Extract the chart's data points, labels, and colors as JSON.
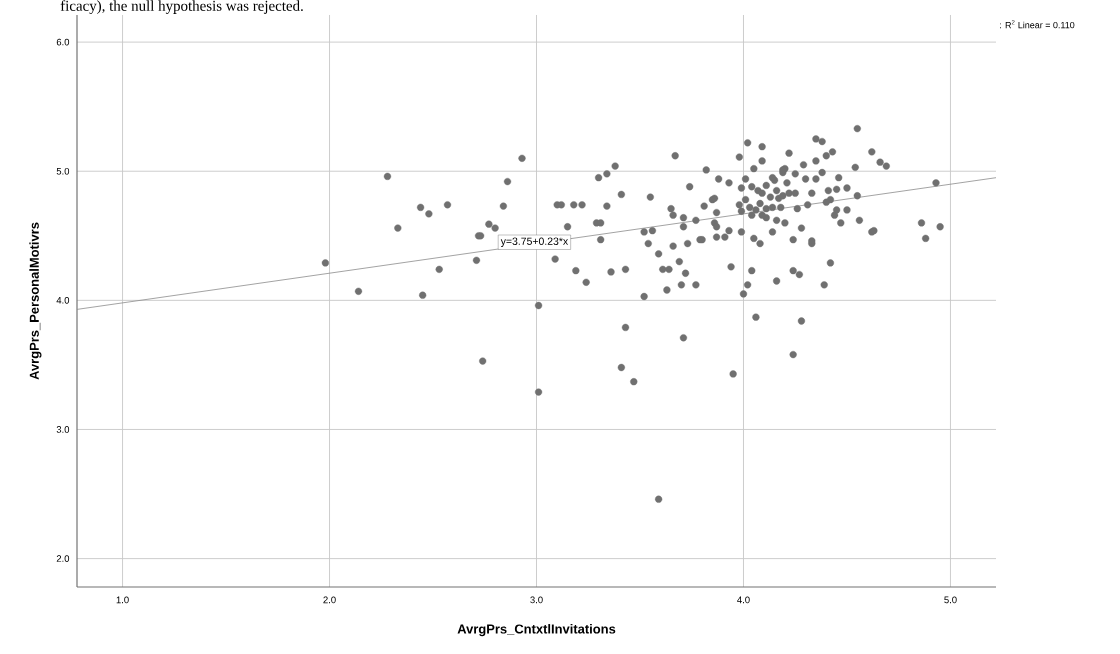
{
  "chart_data": {
    "type": "scatter",
    "xlabel": "AvrgPrs_CntxtlInvitations",
    "ylabel": "AvrgPrs_PersonalMotivrs",
    "xlim": [
      0.78,
      5.22
    ],
    "ylim": [
      1.78,
      6.21
    ],
    "xticks": [
      {
        "value": 1,
        "label": "1.0"
      },
      {
        "value": 2,
        "label": "2.0"
      },
      {
        "value": 3,
        "label": "3.0"
      },
      {
        "value": 4,
        "label": "4.0"
      },
      {
        "value": 5,
        "label": "5.0"
      }
    ],
    "yticks": [
      {
        "value": 2,
        "label": "2.0"
      },
      {
        "value": 3,
        "label": "3.0"
      },
      {
        "value": 4,
        "label": "4.0"
      },
      {
        "value": 5,
        "label": "5.0"
      },
      {
        "value": 6,
        "label": "6.0"
      }
    ],
    "grid": true,
    "marker": "circle",
    "annotations": [
      "ficacy), the null hypothesis was rejected.",
      ": R$^{2}$ Linear = 0.110",
      {
        "text": "y=3.75+0.23*x",
        "x": 2.99,
        "y": 4.45
      }
    ],
    "series": [
      {
        "color": "#707070",
        "x": [
          1.98,
          2.14,
          2.28,
          2.33,
          2.44,
          2.45,
          2.48,
          2.53,
          2.57,
          2.71,
          2.72,
          2.74,
          3.01,
          3.01,
          4.06,
          4.28,
          3.43,
          3.71,
          4.24,
          3.41,
          3.95,
          3.47,
          3.59,
          3.52,
          2.93,
          2.86,
          2.84,
          2.77,
          2.8,
          2.73,
          3.1,
          3.12,
          3.18,
          3.22,
          3.15,
          3.09,
          3.19,
          3.24,
          3.3,
          3.34,
          3.38,
          3.41,
          3.29,
          3.31,
          3.31,
          3.34,
          3.36,
          3.43,
          3.55,
          3.52,
          3.56,
          3.54,
          3.59,
          3.61,
          3.64,
          3.63,
          3.7,
          3.77,
          3.66,
          3.69,
          3.72,
          3.73,
          3.79,
          3.71,
          3.67,
          3.65,
          3.66,
          3.71,
          3.77,
          3.74,
          3.82,
          3.88,
          3.93,
          3.81,
          3.85,
          3.87,
          3.86,
          3.87,
          3.91,
          3.94,
          3.93,
          3.98,
          4.02,
          4.09,
          4.09,
          4.05,
          4.22,
          4.29,
          4.35,
          4.38,
          4.35,
          4.4,
          4.43,
          4.55,
          4.54,
          4.62,
          4.66,
          4.69,
          4.93,
          4.86,
          4.95,
          4.88,
          4.2,
          4.25,
          4.19,
          4.3,
          4.35,
          4.38,
          4.46,
          4.5,
          4.55,
          4.41,
          4.45,
          4.33,
          4.42,
          4.4,
          4.45,
          4.44,
          4.5,
          4.47,
          4.56,
          4.62,
          4.63,
          4.31,
          4.26,
          4.28,
          4.24,
          4.33,
          4.33,
          4.42,
          4.39,
          4.24,
          4.27,
          4.16,
          4.04,
          4.02,
          4.0,
          4.2,
          4.14,
          4.08,
          4.05,
          3.99,
          3.8,
          3.87,
          3.86,
          3.98,
          3.99,
          4.04,
          4.11,
          4.16,
          4.01,
          3.99,
          4.01,
          4.04,
          4.07,
          4.09,
          4.11,
          4.13,
          4.15,
          4.16,
          4.17,
          4.19,
          4.21,
          4.22,
          4.25,
          4.08,
          4.11,
          4.14,
          4.18,
          4.06,
          4.03,
          4.09,
          4.19,
          4.14
        ],
        "values": [
          4.29,
          4.07,
          4.96,
          4.56,
          4.72,
          4.04,
          4.67,
          4.24,
          4.74,
          4.31,
          4.5,
          3.53,
          3.96,
          3.29,
          3.87,
          3.84,
          3.79,
          3.71,
          3.58,
          3.48,
          3.43,
          3.37,
          2.46,
          4.03,
          5.1,
          4.92,
          4.73,
          4.59,
          4.56,
          4.5,
          4.74,
          4.74,
          4.74,
          4.74,
          4.57,
          4.32,
          4.23,
          4.14,
          4.95,
          4.98,
          5.04,
          4.82,
          4.6,
          4.6,
          4.47,
          4.73,
          4.22,
          4.24,
          4.8,
          4.53,
          4.54,
          4.44,
          4.36,
          4.24,
          4.24,
          4.08,
          4.12,
          4.12,
          4.42,
          4.3,
          4.21,
          4.44,
          4.47,
          4.57,
          5.12,
          4.71,
          4.66,
          4.64,
          4.62,
          4.88,
          5.01,
          4.94,
          4.91,
          4.73,
          4.78,
          4.68,
          4.6,
          4.49,
          4.49,
          4.26,
          4.54,
          5.11,
          5.22,
          5.19,
          5.08,
          5.02,
          5.14,
          5.05,
          5.25,
          5.23,
          5.08,
          5.12,
          5.15,
          5.33,
          5.03,
          5.15,
          5.07,
          5.04,
          4.91,
          4.6,
          4.57,
          4.48,
          5.02,
          4.98,
          4.99,
          4.94,
          4.94,
          4.99,
          4.95,
          4.87,
          4.81,
          4.85,
          4.86,
          4.83,
          4.78,
          4.76,
          4.7,
          4.66,
          4.7,
          4.6,
          4.62,
          4.53,
          4.54,
          4.74,
          4.71,
          4.56,
          4.47,
          4.44,
          4.46,
          4.29,
          4.12,
          4.23,
          4.2,
          4.15,
          4.23,
          4.12,
          4.05,
          4.6,
          4.53,
          4.44,
          4.48,
          4.53,
          4.47,
          4.57,
          4.79,
          4.74,
          4.69,
          4.66,
          4.64,
          4.62,
          4.78,
          4.87,
          4.94,
          4.88,
          4.85,
          4.83,
          4.89,
          4.8,
          4.93,
          4.85,
          4.79,
          4.81,
          4.91,
          4.83,
          4.83,
          4.75,
          4.71,
          4.72,
          4.72,
          4.7,
          4.72,
          4.66,
          5.01,
          4.95
        ]
      },
      {
        "type": "line",
        "color": "#8c8c8c",
        "marker": "none",
        "x": [
          0.78,
          5.22
        ],
        "values": [
          3.93,
          4.95
        ]
      }
    ]
  }
}
